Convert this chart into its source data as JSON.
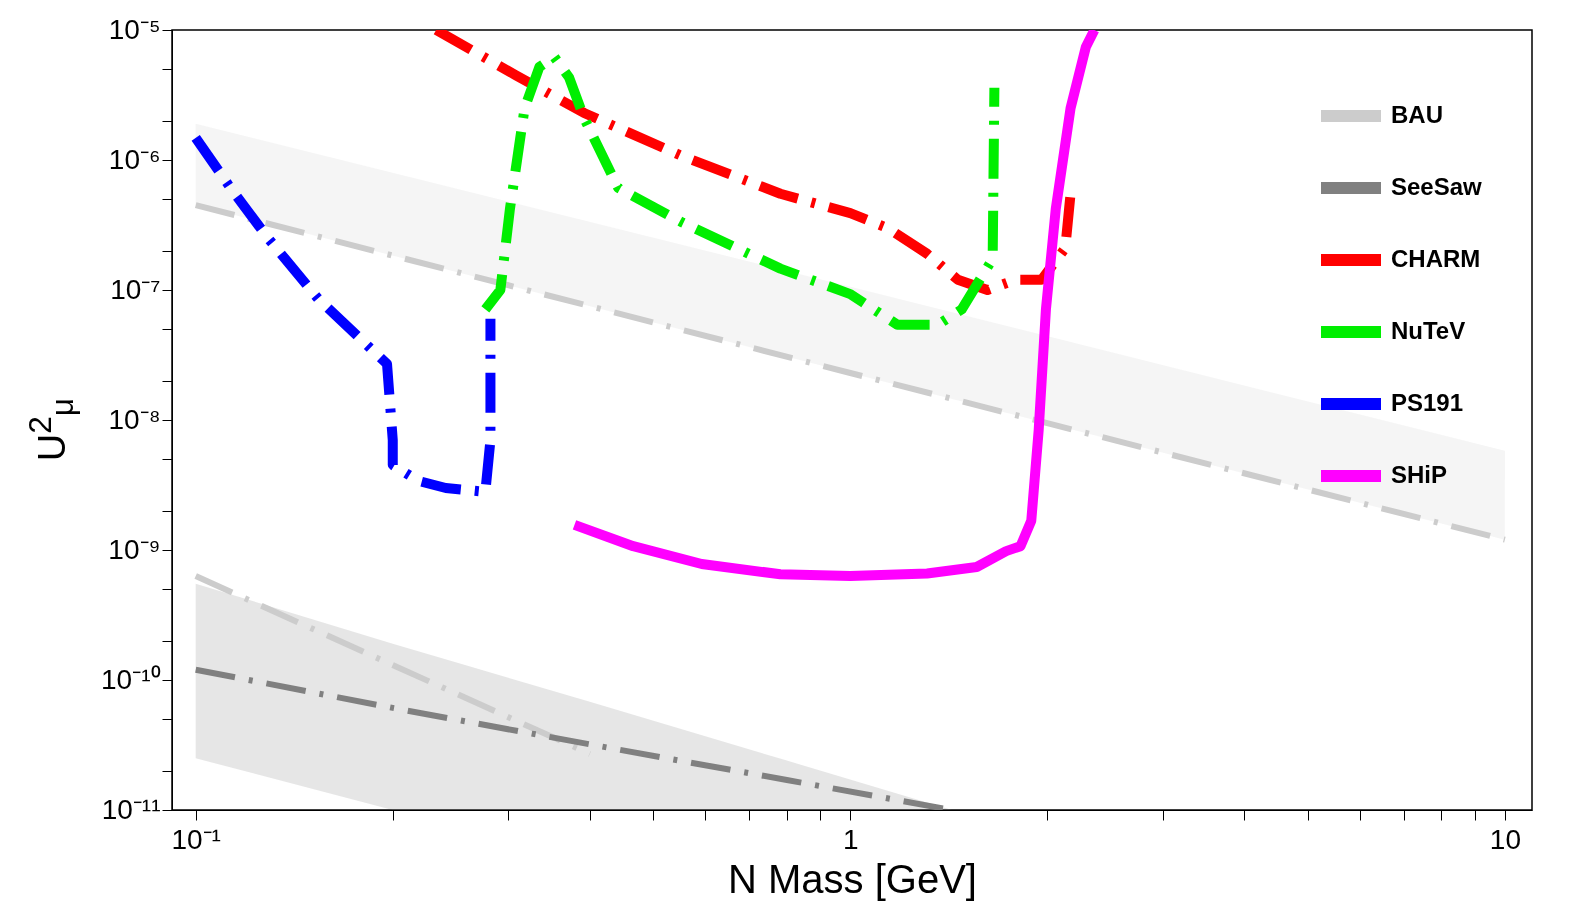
{
  "chart_data": {
    "type": "line",
    "xlabel": "N Mass [GeV]",
    "ylabel": "U$^{2}$$_{μ}$",
    "log": "xy",
    "grid": false,
    "legend": "top right",
    "xlim": [
      0.092,
      11
    ],
    "ylim": [
      1e-11,
      1e-05
    ],
    "xticks": [
      {
        "value": 0.1,
        "label": "10⁻¹"
      },
      {
        "value": 0.2,
        "label": null
      },
      {
        "value": 0.3,
        "label": null
      },
      {
        "value": 0.4,
        "label": null
      },
      {
        "value": 0.5,
        "label": null
      },
      {
        "value": 0.6,
        "label": null
      },
      {
        "value": 0.7,
        "label": null
      },
      {
        "value": 0.8,
        "label": null
      },
      {
        "value": 0.9,
        "label": null
      },
      1,
      {
        "value": 2,
        "label": null
      },
      {
        "value": 3,
        "label": null
      },
      {
        "value": 4,
        "label": null
      },
      {
        "value": 5,
        "label": null
      },
      {
        "value": 6,
        "label": null
      },
      {
        "value": 7,
        "label": null
      },
      {
        "value": 8,
        "label": null
      },
      {
        "value": 9,
        "label": null
      },
      10
    ],
    "yticks": [
      {
        "value": 1e-11,
        "label": "10⁻¹¹"
      },
      {
        "value": 2e-11,
        "label": null
      },
      {
        "value": 5e-11,
        "label": null
      },
      {
        "value": 1e-10,
        "label": "10⁻¹⁰"
      },
      {
        "value": 2e-10,
        "label": null
      },
      {
        "value": 5e-10,
        "label": null
      },
      {
        "value": 1e-09,
        "label": "10⁻⁹"
      },
      {
        "value": 2e-09,
        "label": null
      },
      {
        "value": 5e-09,
        "label": null
      },
      {
        "value": 1e-08,
        "label": "10⁻⁸"
      },
      {
        "value": 2e-08,
        "label": null
      },
      {
        "value": 5e-08,
        "label": null
      },
      {
        "value": 1e-07,
        "label": "10⁻⁷"
      },
      {
        "value": 2e-07,
        "label": null
      },
      {
        "value": 5e-07,
        "label": null
      },
      {
        "value": 1e-06,
        "label": "10⁻⁶"
      },
      {
        "value": 2e-06,
        "label": null
      },
      {
        "value": 5e-06,
        "label": null
      },
      {
        "value": 1e-05,
        "label": "10⁻⁵"
      }
    ],
    "series": [
      {
        "name": "BAU",
        "color": "#cccccc",
        "line_style": "dashed",
        "x": [
          0.1,
          1,
          10
        ],
        "values": [
          4.5e-07,
          2.3e-08,
          1.2e-09
        ],
        "lower": [
          4.5e-07,
          2.3e-08,
          1.2e-09
        ],
        "upper": [
          1.9e-06,
          1.06e-07,
          5.8e-09
        ]
      },
      {
        "color": "#cccccc",
        "line_style": "dashed",
        "x": [
          0.1,
          0.4
        ],
        "values": [
          6.3e-10,
          2.7e-11
        ]
      },
      {
        "name": "SeeSaw",
        "color": "#808080",
        "line_style": "dashed",
        "x": [
          0.1,
          0.2,
          0.4,
          0.8,
          1.43
        ],
        "values": [
          1.2e-10,
          6.1e-11,
          3.2e-11,
          1.7e-11,
          1e-11
        ],
        "lower": [
          2.5e-11,
          1e-11,
          1e-11,
          1e-11,
          1e-11
        ],
        "upper": [
          5.5e-10,
          1.9e-10,
          6.8e-11,
          2.4e-11,
          1e-11
        ]
      },
      {
        "name": "CHARM",
        "color": "#ff0000",
        "line_style": "dashed",
        "x": [
          0.233,
          0.308,
          0.392,
          0.554,
          0.782,
          1.0,
          1.14,
          1.31,
          1.46,
          1.62,
          1.79,
          1.96,
          2.13,
          2.17
        ],
        "values": [
          1e-05,
          4.5e-06,
          2.3e-06,
          1.07e-06,
          5.5e-07,
          3.9e-07,
          3e-07,
          1.9e-07,
          1.2e-07,
          1e-07,
          1.2e-07,
          1.2e-07,
          2.1e-07,
          5.5e-07
        ]
      },
      {
        "name": "NuTeV",
        "color": "#00ee00",
        "line_style": "dashed",
        "x": [
          0.277,
          0.292,
          0.302,
          0.318,
          0.335,
          0.353,
          0.372,
          0.392,
          0.442,
          0.554,
          0.782,
          1.0,
          1.18,
          1.36,
          1.48,
          1.65,
          1.66
        ],
        "values": [
          7.1e-08,
          1e-07,
          4.2e-07,
          2.5e-06,
          5.2e-06,
          6.2e-06,
          4.3e-06,
          2.1e-06,
          6.1e-07,
          3.3e-07,
          1.46e-07,
          9.3e-08,
          5.4e-08,
          5.4e-08,
          7.1e-08,
          1.74e-07,
          3.6e-06
        ]
      },
      {
        "name": "PS191",
        "color": "#0000ff",
        "line_style": "dashed",
        "x": [
          0.1,
          0.113,
          0.129,
          0.154,
          0.196,
          0.2,
          0.2,
          0.219,
          0.241,
          0.277,
          0.282,
          0.282
        ],
        "values": [
          1.48e-06,
          6.1e-07,
          2.5e-07,
          8.5e-08,
          2.7e-08,
          7e-09,
          4.5e-09,
          3.4e-09,
          3e-09,
          2.8e-09,
          7e-09,
          6e-08
        ]
      },
      {
        "name": "SHiP",
        "color": "#ff00ff",
        "line_style": "solid",
        "x": [
          0.379,
          0.466,
          0.593,
          0.782,
          1.0,
          1.31,
          1.56,
          1.73,
          1.82,
          1.89,
          1.94,
          1.99,
          2.06,
          2.17,
          2.29,
          2.36
        ],
        "values": [
          1.56e-09,
          1.07e-09,
          7.8e-10,
          6.5e-10,
          6.3e-10,
          6.6e-10,
          7.4e-10,
          9.8e-10,
          1.07e-09,
          1.68e-09,
          8.4e-09,
          7.1e-08,
          4.2e-07,
          2.5e-06,
          7.4e-06,
          1e-05
        ]
      }
    ]
  }
}
